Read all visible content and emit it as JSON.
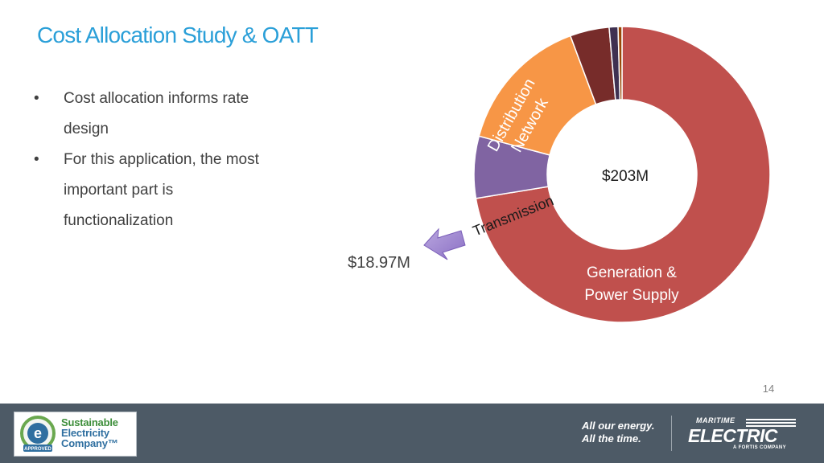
{
  "slide": {
    "title": "Cost Allocation Study & OATT",
    "bullet_char": "•",
    "bullets": [
      "Cost allocation informs rate design",
      "For this application, the most important part is functionalization"
    ],
    "page_number": "14"
  },
  "chart_data": {
    "type": "pie",
    "variant": "donut",
    "title": "",
    "slices": [
      {
        "label": "Generation & Power Supply",
        "value": 203,
        "color": "#c0504d"
      },
      {
        "label": "Transmission",
        "value": 18.97,
        "color": "#8064a2"
      },
      {
        "label": "Distribution Network",
        "value": 42.5,
        "color": "#f79646"
      },
      {
        "label": "",
        "value": 12,
        "color": "#772c2a"
      },
      {
        "label": "",
        "value": 2.7,
        "color": "#3f3151"
      },
      {
        "label": "",
        "value": 1.2,
        "color": "#984807"
      }
    ],
    "annotations": {
      "generation_total": "$203M",
      "transmission_total": "$18.97M",
      "generation_label": [
        "Generation &",
        "Power Supply"
      ],
      "transmission_label": "Transmission",
      "distribution_label": [
        "Distribution",
        "Network"
      ]
    }
  },
  "footer": {
    "background": "#4d5a66",
    "sec_logo": {
      "lines": [
        "Sustainable",
        "Electricity",
        "Company™"
      ],
      "badge_text": "APPROVED"
    },
    "tagline": [
      "All our energy.",
      "All the time."
    ],
    "brand": {
      "top": "MARITIME",
      "main": "ELECTRIC",
      "sub": "A FORTIS COMPANY"
    }
  }
}
